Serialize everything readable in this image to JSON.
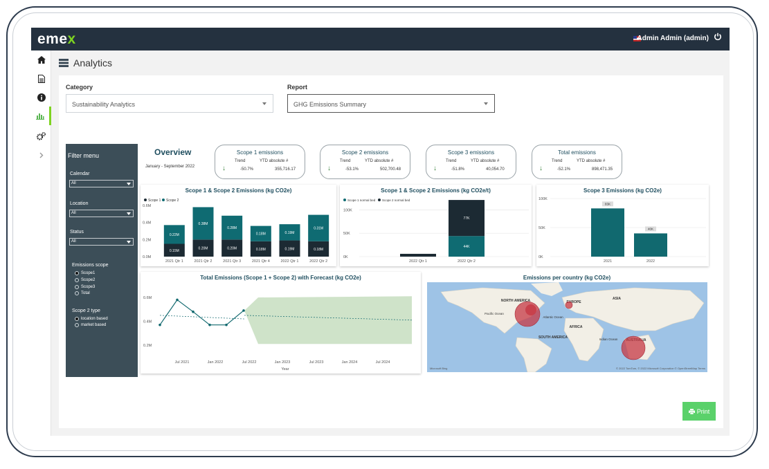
{
  "app": {
    "logo_text": "eme",
    "logo_x": "x",
    "user_label": "Admin Admin (admin)"
  },
  "sidebar": {
    "items": [
      {
        "name": "home-icon"
      },
      {
        "name": "document-icon"
      },
      {
        "name": "info-icon"
      },
      {
        "name": "analytics-icon",
        "active": true
      },
      {
        "name": "settings-icon"
      },
      {
        "name": "expand-icon"
      }
    ]
  },
  "page": {
    "title": "Analytics"
  },
  "filters_top": {
    "category_label": "Category",
    "category_value": "Sustainability Analytics",
    "report_label": "Report",
    "report_value": "GHG Emissions Summary"
  },
  "filter_menu": {
    "title": "Filter menu",
    "calendar_label": "Calendar",
    "calendar_value": "All",
    "location_label": "Location",
    "location_value": "All",
    "status_label": "Status",
    "status_value": "All",
    "scope_label": "Emissions scope",
    "scope_options": [
      "Scope1",
      "Scope2",
      "Scope3",
      "Total"
    ],
    "scope2_label": "Scope 2 type",
    "scope2_options": [
      "location based",
      "market based"
    ]
  },
  "overview": {
    "title": "Overview",
    "period": "January - September 2022"
  },
  "kpis": [
    {
      "title": "Scope 1 emissions",
      "trend_label": "Trend",
      "ytd_label": "YTD absolute #",
      "trend": "-50.7%",
      "ytd": "355,716.17"
    },
    {
      "title": "Scope 2 emissions",
      "trend_label": "Trend",
      "ytd_label": "YTD absolute #",
      "trend": "-53.1%",
      "ytd": "502,700.48"
    },
    {
      "title": "Scope 3 emissions",
      "trend_label": "Trend",
      "ytd_label": "YTD absolute #",
      "trend": "-51.8%",
      "ytd": "40,054.70"
    },
    {
      "title": "Total emissions",
      "trend_label": "Trend",
      "ytd_label": "YTD absolute #",
      "trend": "-52.1%",
      "ytd": "898,471.35"
    }
  ],
  "colors": {
    "scope1": "#1c2a33",
    "scope2": "#0f6b72",
    "teal": "#11696f",
    "forecast": "#cfe3c9",
    "print": "#5ad16a",
    "filter_bg": "#3c4e58"
  },
  "chart_data": [
    {
      "type": "bar",
      "title": "Scope 1 & Scope 2 Emissions (kg CO2e)",
      "categories": [
        "2021 Qtr 1",
        "2021 Qtr 2",
        "2021 Qtr 3",
        "2021 Qtr 4",
        "2022 Qtr 1",
        "2022 Qtr 2"
      ],
      "series": [
        {
          "name": "Scope 1",
          "values": [
            0.15,
            0.2,
            0.2,
            0.18,
            0.19,
            0.18
          ],
          "labels": [
            "0.15M",
            "0.20M",
            "0.20M",
            "0.18M",
            "0.19M",
            "0.18M"
          ]
        },
        {
          "name": "Scope 2",
          "values": [
            0.22,
            0.38,
            0.28,
            0.18,
            0.19,
            0.31
          ],
          "labels": [
            "0.22M",
            "0.38M",
            "0.28M",
            "0.18M",
            "0.19M",
            "0.31M"
          ]
        }
      ],
      "yticks": [
        "0.6M",
        "0.4M",
        "0.2M",
        "0.0M"
      ],
      "ylim": [
        0,
        0.6
      ]
    },
    {
      "type": "bar",
      "title": "Scope 1 & Scope 2 Emissions (kg CO2e/t)",
      "categories": [
        "2022 Qtr 1",
        "2022 Qtr 2"
      ],
      "series": [
        {
          "name": "Scope 1 normal bed",
          "values": [
            0,
            44
          ],
          "labels": [
            "",
            "44K"
          ]
        },
        {
          "name": "Scope 2 normal bed",
          "values": [
            6,
            77
          ],
          "labels": [
            "",
            "77K"
          ]
        }
      ],
      "yticks": [
        "100K",
        "50K",
        "0K"
      ],
      "ylim": [
        0,
        130
      ]
    },
    {
      "type": "bar",
      "title": "Scope 3 Emissions (kg CO2e)",
      "categories": [
        "2021",
        "2022"
      ],
      "series": [
        {
          "values": [
            83,
            40
          ],
          "labels": [
            "83K",
            "40K"
          ]
        }
      ],
      "yticks": [
        "100K",
        "50K",
        "0K"
      ],
      "ylim": [
        0,
        100
      ]
    },
    {
      "type": "line",
      "title": "Total Emissions (Scope 1 + Scope 2) with Forecast (kg CO2e)",
      "xlabel": "Year",
      "xticks": [
        "Jul 2021",
        "Jan 2022",
        "Jul 2022",
        "Jan 2023",
        "Jul 2023",
        "Jan 2024",
        "Jul 2024"
      ],
      "yticks": [
        "0.6M",
        "0.4M",
        "0.2M"
      ],
      "series": [
        {
          "name": "Total",
          "values": [
            0.37,
            0.58,
            0.48,
            0.37,
            0.37,
            0.49
          ]
        }
      ],
      "forecast": {
        "value": 0.41,
        "upper": 0.62,
        "lower": 0.2
      }
    },
    {
      "type": "map",
      "title": "Emissions per country (kg CO2e)",
      "labels": [
        "NORTH AMERICA",
        "EUROPE",
        "ASIA",
        "AFRICA",
        "SOUTH AMERICA",
        "AUSTRALIA",
        "Pacific Ocean",
        "Atlantic Ocean",
        "Indian Ocean"
      ],
      "bubbles": [
        {
          "region": "North America",
          "size": "large"
        },
        {
          "region": "Europe",
          "size": "small"
        },
        {
          "region": "Australia",
          "size": "large"
        }
      ],
      "attribution": "© 2022 TomTom, © 2022 Microsoft Corporation  © OpenStreetMap  Terms",
      "brand": "Microsoft Bing"
    }
  ],
  "print": {
    "label": "Print"
  }
}
